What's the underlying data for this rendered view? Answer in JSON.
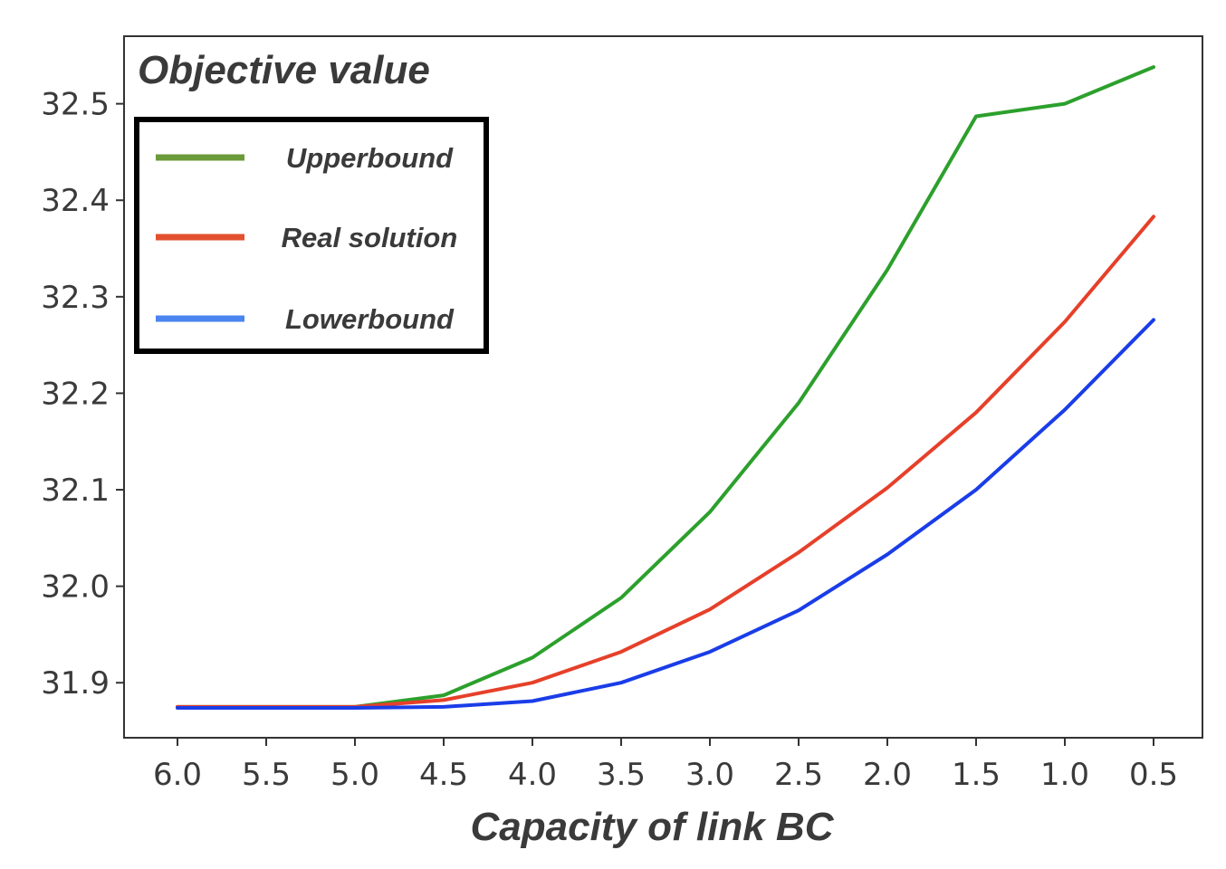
{
  "chart_data": {
    "type": "line",
    "title": "Objective value",
    "xlabel": "Capacity of link BC",
    "ylabel": "",
    "x": [
      6.0,
      5.5,
      5.0,
      4.5,
      4.0,
      3.5,
      3.0,
      2.5,
      2.0,
      1.5,
      1.0,
      0.5
    ],
    "x_tick_labels": [
      "6.0",
      "5.5",
      "5.0",
      "4.5",
      "4.0",
      "3.5",
      "3.0",
      "2.5",
      "2.0",
      "1.5",
      "1.0",
      "0.5"
    ],
    "x_reversed": true,
    "y_ticks": [
      31.9,
      32.0,
      32.1,
      32.2,
      32.3,
      32.4,
      32.5
    ],
    "y_tick_labels": [
      "31.9",
      "32.0",
      "32.1",
      "32.2",
      "32.3",
      "32.4",
      "32.5"
    ],
    "ylim": [
      31.843,
      32.57
    ],
    "grid": false,
    "legend_position": "upper-left",
    "series": [
      {
        "name": "Upperbound",
        "color": "#2ca02c",
        "legend_color": "#6b9a3a",
        "values": [
          31.875,
          31.875,
          31.875,
          31.887,
          31.926,
          31.988,
          32.077,
          32.19,
          32.328,
          32.487,
          32.5,
          32.538
        ]
      },
      {
        "name": "Real solution",
        "color": "#e6402a",
        "legend_color": "#e2502e",
        "values": [
          31.875,
          31.875,
          31.875,
          31.882,
          31.9,
          31.932,
          31.976,
          32.035,
          32.102,
          32.18,
          32.274,
          32.383
        ]
      },
      {
        "name": "Lowerbound",
        "color": "#1a3de8",
        "legend_color": "#4a84f0",
        "values": [
          31.874,
          31.874,
          31.874,
          31.875,
          31.881,
          31.9,
          31.932,
          31.975,
          32.033,
          32.1,
          32.183,
          32.276
        ]
      }
    ]
  }
}
